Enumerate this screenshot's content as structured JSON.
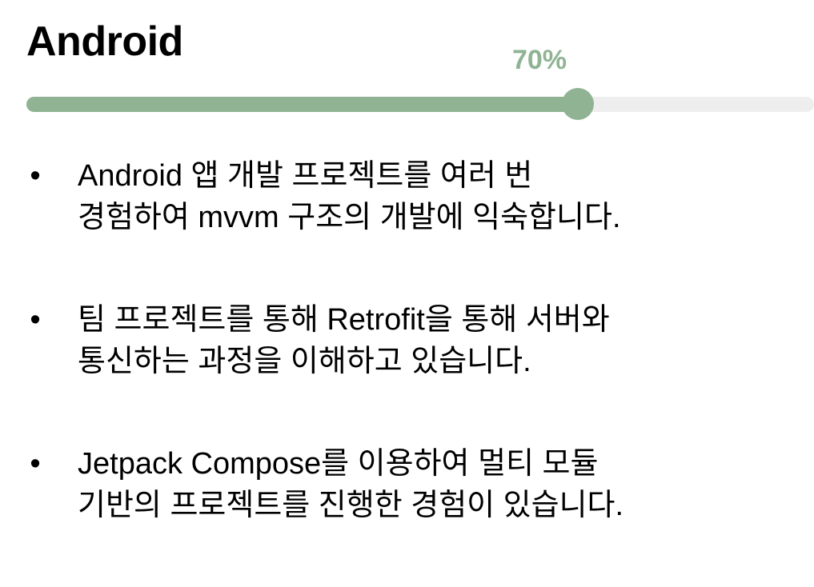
{
  "header": {
    "title": "Android"
  },
  "progress": {
    "value": 70,
    "label": "70%",
    "color": "#8fb393",
    "track_color": "#eeeeee"
  },
  "bullets": {
    "marker": "•",
    "items": [
      {
        "line1": "Android 앱 개발 프로젝트를 여러 번",
        "line2": "경험하여 mvvm 구조의 개발에 익숙합니다."
      },
      {
        "line1": "팀 프로젝트를 통해 Retrofit을 통해 서버와",
        "line2": "통신하는 과정을 이해하고 있습니다."
      },
      {
        "line1": "Jetpack Compose를 이용하여 멀티 모듈",
        "line2": "기반의 프로젝트를 진행한 경험이 있습니다."
      }
    ]
  }
}
